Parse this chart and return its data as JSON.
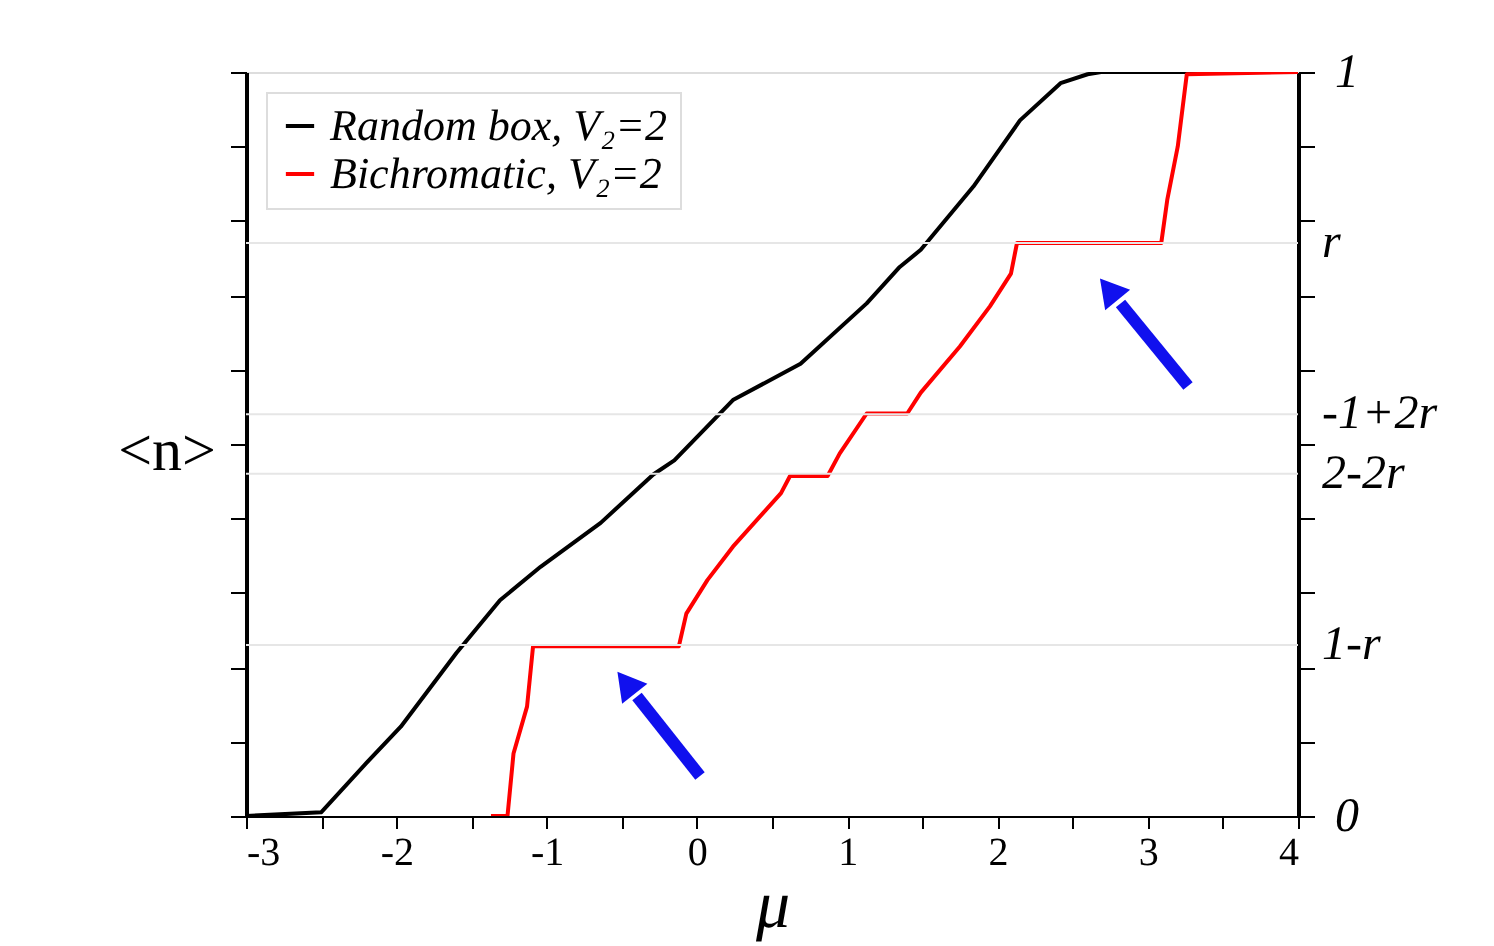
{
  "chart_data": {
    "type": "line",
    "xlabel": "μ",
    "ylabel": "<n>",
    "legend": "top left",
    "line_style": "solid",
    "marker": "none",
    "grid": false,
    "xlim": [
      -3,
      4
    ],
    "ylim": [
      0,
      1
    ],
    "xticks": [
      -3,
      {
        "value": -2.5,
        "label": null
      },
      -2,
      {
        "value": -1.5,
        "label": null
      },
      -1,
      {
        "value": -0.5,
        "label": null
      },
      0,
      {
        "value": 0.5,
        "label": null
      },
      1,
      {
        "value": 1.5,
        "label": null
      },
      2,
      {
        "value": 2.5,
        "label": null
      },
      3,
      {
        "value": 3.5,
        "label": null
      },
      4
    ],
    "yticks": [
      0,
      {
        "value": 0.1,
        "label": null
      },
      {
        "value": 0.2,
        "label": null
      },
      {
        "value": 0.3,
        "label": null
      },
      {
        "value": 0.4,
        "label": null
      },
      {
        "value": 0.5,
        "label": null
      },
      {
        "value": 0.6,
        "label": null
      },
      {
        "value": 0.7,
        "label": null
      },
      {
        "value": 0.8,
        "label": null
      },
      {
        "value": 0.9,
        "label": null
      },
      1
    ],
    "ref_lines": [
      {
        "axis": "y",
        "value": 0.23,
        "label": "1-r",
        "color": "#e6e6e6"
      },
      {
        "axis": "y",
        "value": 0.46,
        "label": "2-2r",
        "color": "#e6e6e6"
      },
      {
        "axis": "y",
        "value": 0.54,
        "label": "-1+2r",
        "color": "#e6e6e6"
      },
      {
        "axis": "y",
        "value": 0.77,
        "label": "r",
        "color": "#e6e6e6"
      }
    ],
    "series": [
      {
        "name": "Random box, V₂=2",
        "color": "#000000",
        "x": [
          -3,
          -2.5,
          -2.2,
          -1.97,
          -1.6,
          -1.31,
          -1.04,
          -0.64,
          -0.29,
          -0.15,
          0.24,
          0.69,
          1.13,
          1.35,
          1.49,
          1.84,
          2.15,
          2.42,
          2.6,
          2.69,
          4
        ],
        "values": [
          0,
          0.005,
          0.071,
          0.12,
          0.219,
          0.29,
          0.335,
          0.394,
          0.459,
          0.478,
          0.559,
          0.608,
          0.689,
          0.738,
          0.761,
          0.846,
          0.935,
          0.985,
          0.997,
          1,
          1
        ]
      },
      {
        "name": "Bichromatic, V₂=2",
        "color": "#ff0000",
        "x": [
          -1.37,
          -1.26,
          -1.22,
          -1.13,
          -1.09,
          -0.12,
          -0.07,
          0.07,
          0.24,
          0.56,
          0.62,
          0.87,
          0.95,
          1.13,
          1.4,
          1.49,
          1.75,
          1.95,
          2.09,
          2.13,
          3.09,
          3.13,
          3.2,
          3.26,
          4
        ],
        "values": [
          0,
          0,
          0.084,
          0.147,
          0.228,
          0.228,
          0.272,
          0.317,
          0.362,
          0.434,
          0.457,
          0.457,
          0.487,
          0.541,
          0.541,
          0.569,
          0.631,
          0.685,
          0.729,
          0.77,
          0.77,
          0.828,
          0.9,
          0.997,
          1
        ]
      }
    ]
  }
}
